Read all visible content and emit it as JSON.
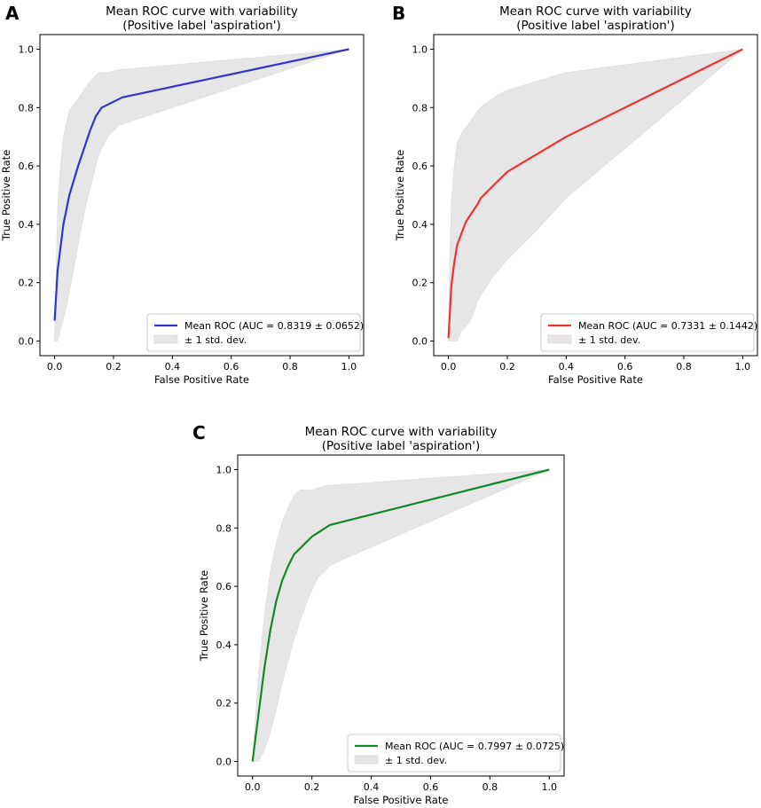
{
  "panels": [
    {
      "letter": "A"
    },
    {
      "letter": "B"
    },
    {
      "letter": "C"
    }
  ],
  "chart_data": [
    {
      "type": "line",
      "panel": "A",
      "title": "Mean ROC curve with variability",
      "subtitle": "(Positive label 'aspiration')",
      "xlabel": "False Positive Rate",
      "ylabel": "True Positive Rate",
      "xlim": [
        -0.05,
        1.05
      ],
      "ylim": [
        -0.05,
        1.05
      ],
      "xticks": [
        0.0,
        0.2,
        0.4,
        0.6,
        0.8,
        1.0
      ],
      "yticks": [
        0.0,
        0.2,
        0.4,
        0.6,
        0.8,
        1.0
      ],
      "grid": false,
      "legend_position": "lower-right",
      "color": "#3333cc",
      "band_color": "#e6e6e6",
      "legend": [
        "Mean ROC (AUC = 0.8319 ± 0.0652)",
        "± 1 std. dev."
      ],
      "mean": {
        "x": [
          0.0,
          0.01,
          0.02,
          0.03,
          0.05,
          0.08,
          0.1,
          0.12,
          0.14,
          0.16,
          0.2,
          0.23,
          1.0
        ],
        "y": [
          0.07,
          0.24,
          0.32,
          0.4,
          0.5,
          0.6,
          0.66,
          0.72,
          0.77,
          0.8,
          0.82,
          0.835,
          1.0
        ]
      },
      "band_upper": {
        "x": [
          0.0,
          0.005,
          0.01,
          0.02,
          0.03,
          0.05,
          0.08,
          0.1,
          0.12,
          0.15,
          0.18,
          0.22,
          1.0
        ],
        "y": [
          0.0,
          0.25,
          0.45,
          0.6,
          0.7,
          0.79,
          0.83,
          0.86,
          0.89,
          0.92,
          0.92,
          0.93,
          1.0
        ]
      },
      "band_lower": {
        "x": [
          1.0,
          0.22,
          0.18,
          0.15,
          0.12,
          0.1,
          0.08,
          0.06,
          0.04,
          0.02,
          0.01,
          0.0
        ],
        "y": [
          1.0,
          0.74,
          0.7,
          0.64,
          0.52,
          0.44,
          0.33,
          0.22,
          0.12,
          0.04,
          0.0,
          0.0
        ]
      }
    },
    {
      "type": "line",
      "panel": "B",
      "title": "Mean ROC curve with variability",
      "subtitle": "(Positive label 'aspiration')",
      "xlabel": "False Positive Rate",
      "ylabel": "True Positive Rate",
      "xlim": [
        -0.05,
        1.05
      ],
      "ylim": [
        -0.05,
        1.05
      ],
      "xticks": [
        0.0,
        0.2,
        0.4,
        0.6,
        0.8,
        1.0
      ],
      "yticks": [
        0.0,
        0.2,
        0.4,
        0.6,
        0.8,
        1.0
      ],
      "grid": false,
      "legend_position": "lower-right",
      "color": "#ee3333",
      "band_color": "#e6e6e6",
      "legend": [
        "Mean ROC (AUC = 0.7331 ± 0.1442)",
        "± 1 std. dev."
      ],
      "mean": {
        "x": [
          0.0,
          0.01,
          0.02,
          0.03,
          0.06,
          0.1,
          0.11,
          0.17,
          0.2,
          0.4,
          1.0
        ],
        "y": [
          0.01,
          0.19,
          0.27,
          0.33,
          0.41,
          0.47,
          0.49,
          0.55,
          0.58,
          0.7,
          1.0
        ]
      },
      "band_upper": {
        "x": [
          0.0,
          0.005,
          0.01,
          0.02,
          0.03,
          0.05,
          0.08,
          0.1,
          0.12,
          0.15,
          0.17,
          0.2,
          0.4,
          1.0
        ],
        "y": [
          0.0,
          0.3,
          0.48,
          0.6,
          0.68,
          0.72,
          0.76,
          0.79,
          0.81,
          0.83,
          0.845,
          0.86,
          0.92,
          1.0
        ]
      },
      "band_lower": {
        "x": [
          1.0,
          0.4,
          0.3,
          0.2,
          0.15,
          0.1,
          0.08,
          0.06,
          0.04,
          0.03,
          0.02,
          0.01,
          0.0
        ],
        "y": [
          1.0,
          0.49,
          0.38,
          0.28,
          0.22,
          0.14,
          0.08,
          0.05,
          0.03,
          0.0,
          0.0,
          0.0,
          0.0
        ]
      }
    },
    {
      "type": "line",
      "panel": "C",
      "title": "Mean ROC curve with variability",
      "subtitle": "(Positive label 'aspiration')",
      "xlabel": "False Positive Rate",
      "ylabel": "True Positive Rate",
      "xlim": [
        -0.05,
        1.05
      ],
      "ylim": [
        -0.05,
        1.05
      ],
      "xticks": [
        0.0,
        0.2,
        0.4,
        0.6,
        0.8,
        1.0
      ],
      "yticks": [
        0.0,
        0.2,
        0.4,
        0.6,
        0.8,
        1.0
      ],
      "grid": false,
      "legend_position": "lower-right",
      "color": "#11882a",
      "band_color": "#e6e6e6",
      "legend": [
        "Mean ROC (AUC = 0.7997 ± 0.0725)",
        "± 1 std. dev."
      ],
      "mean": {
        "x": [
          0.0,
          0.02,
          0.04,
          0.06,
          0.08,
          0.1,
          0.12,
          0.14,
          0.16,
          0.18,
          0.2,
          0.23,
          0.26,
          1.0
        ],
        "y": [
          0.0,
          0.16,
          0.32,
          0.45,
          0.55,
          0.62,
          0.67,
          0.71,
          0.73,
          0.75,
          0.77,
          0.79,
          0.81,
          1.0
        ]
      },
      "band_upper": {
        "x": [
          0.0,
          0.02,
          0.04,
          0.06,
          0.08,
          0.1,
          0.12,
          0.14,
          0.16,
          0.2,
          0.25,
          1.0
        ],
        "y": [
          0.0,
          0.3,
          0.5,
          0.65,
          0.75,
          0.82,
          0.87,
          0.91,
          0.93,
          0.93,
          0.945,
          1.0
        ]
      },
      "band_lower": {
        "x": [
          1.0,
          0.3,
          0.26,
          0.22,
          0.18,
          0.14,
          0.1,
          0.08,
          0.06,
          0.04,
          0.02,
          0.0
        ],
        "y": [
          1.0,
          0.69,
          0.67,
          0.63,
          0.54,
          0.42,
          0.27,
          0.18,
          0.1,
          0.04,
          0.0,
          0.0
        ]
      }
    }
  ]
}
